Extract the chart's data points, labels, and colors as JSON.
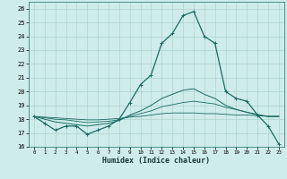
{
  "xlabel": "Humidex (Indice chaleur)",
  "bg_color": "#ceecea",
  "grid_color": "#aed4d0",
  "line_color": "#1a6b63",
  "xlim": [
    -0.5,
    23.5
  ],
  "ylim": [
    16,
    26.5
  ],
  "yticks": [
    16,
    17,
    18,
    19,
    20,
    21,
    22,
    23,
    24,
    25,
    26
  ],
  "xticks": [
    0,
    1,
    2,
    3,
    4,
    5,
    6,
    7,
    8,
    9,
    10,
    11,
    12,
    13,
    14,
    15,
    16,
    17,
    18,
    19,
    20,
    21,
    22,
    23
  ],
  "series1": [
    18.2,
    17.7,
    17.2,
    17.5,
    17.5,
    16.9,
    17.2,
    17.5,
    18.0,
    19.2,
    20.5,
    21.2,
    23.5,
    24.2,
    25.5,
    25.8,
    24.0,
    23.5,
    20.0,
    19.5,
    19.3,
    18.3,
    17.5,
    16.2
  ],
  "series2": [
    18.2,
    18.0,
    17.8,
    17.7,
    17.6,
    17.5,
    17.6,
    17.7,
    17.9,
    18.3,
    18.6,
    19.0,
    19.5,
    19.8,
    20.1,
    20.2,
    19.8,
    19.5,
    19.0,
    18.7,
    18.5,
    18.3,
    18.2,
    18.2
  ],
  "series3": [
    18.2,
    18.1,
    18.0,
    17.95,
    17.85,
    17.75,
    17.8,
    17.85,
    17.95,
    18.2,
    18.4,
    18.6,
    18.9,
    19.05,
    19.2,
    19.3,
    19.2,
    19.1,
    18.85,
    18.7,
    18.5,
    18.35,
    18.2,
    18.2
  ],
  "series4": [
    18.2,
    18.15,
    18.1,
    18.05,
    18.0,
    17.95,
    17.95,
    18.0,
    18.05,
    18.15,
    18.2,
    18.3,
    18.4,
    18.45,
    18.45,
    18.45,
    18.4,
    18.4,
    18.35,
    18.3,
    18.3,
    18.25,
    18.2,
    18.2
  ]
}
